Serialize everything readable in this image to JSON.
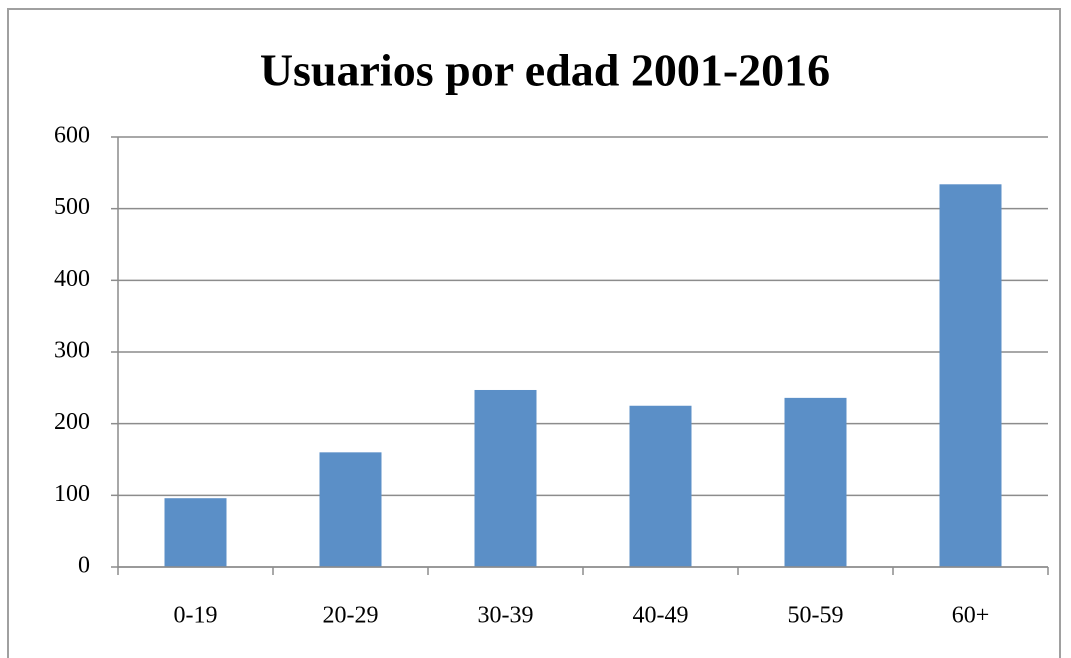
{
  "chart_data": {
    "type": "bar",
    "title": "Usuarios por edad 2001-2016",
    "categories": [
      "0-19",
      "20-29",
      "30-39",
      "40-49",
      "50-59",
      "60+"
    ],
    "values": [
      96,
      160,
      247,
      225,
      236,
      534
    ],
    "color": "#5b8fc7",
    "ylim": [
      0,
      600
    ],
    "yticks": [
      0,
      100,
      200,
      300,
      400,
      500,
      600
    ],
    "grid": true
  }
}
